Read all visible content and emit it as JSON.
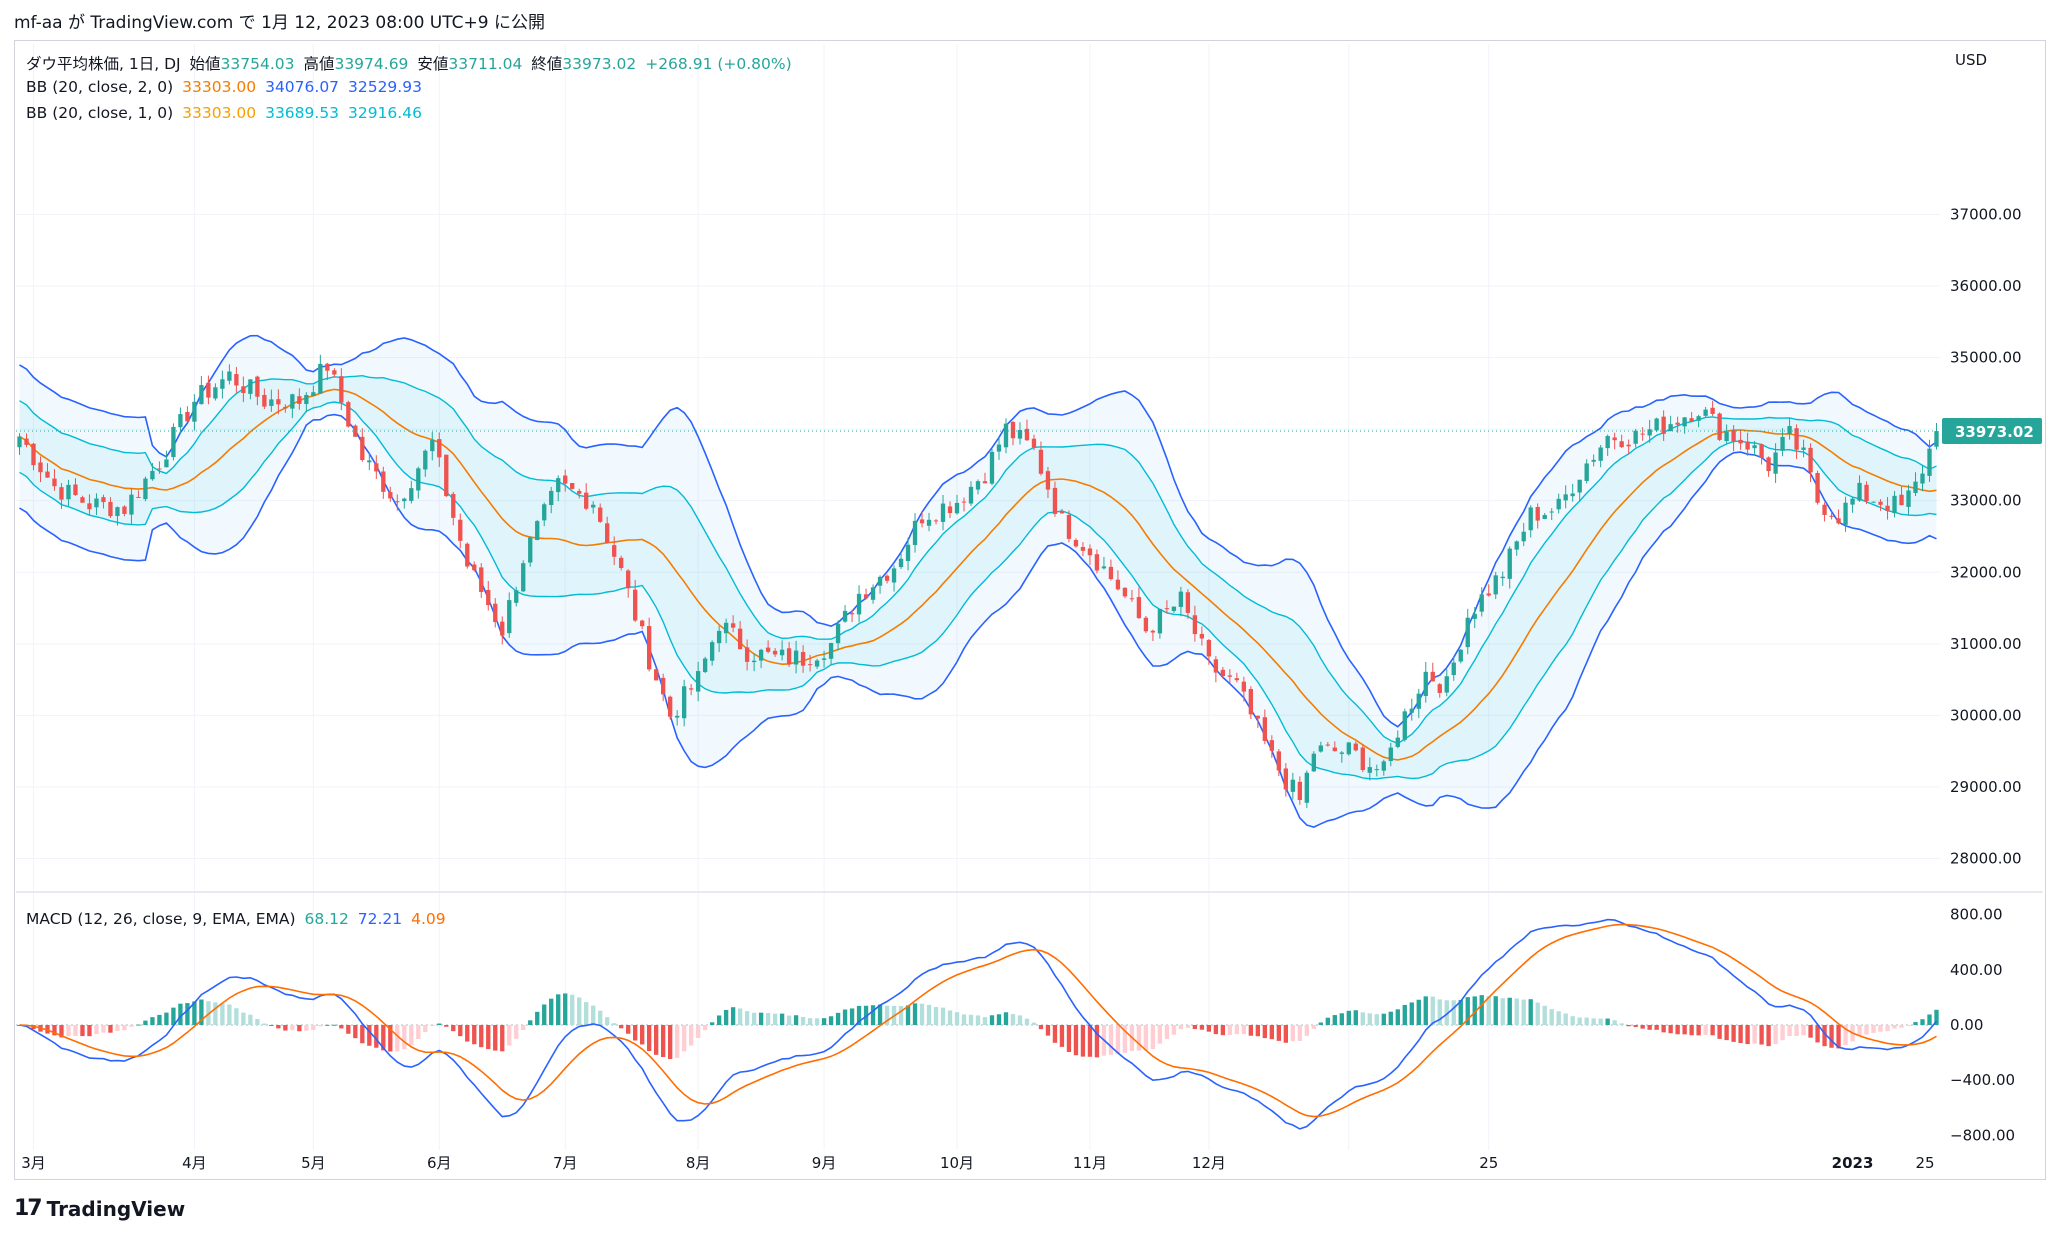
{
  "header": {
    "snapshot_line": "mf-aa が TradingView.com で 1月 12, 2023 08:00 UTC+9 に公開"
  },
  "footer": {
    "brand": "TradingView",
    "logo_icon": "tradingview-logo-icon"
  },
  "legend": {
    "ohlc": {
      "symbol": "ダウ平均株価, 1日, DJ",
      "open_label": "始値",
      "open": "33754.03",
      "high_label": "高値",
      "high": "33974.69",
      "low_label": "安値",
      "low": "33711.04",
      "close_label": "終値",
      "close": "33973.02",
      "change": "+268.91 (+0.80%)"
    },
    "bb2": {
      "label": "BB (20, close, 2, 0)",
      "basis": "33303.00",
      "upper": "34076.07",
      "lower": "32529.93"
    },
    "bb1": {
      "label": "BB (20, close, 1, 0)",
      "basis": "33303.00",
      "upper": "33689.53",
      "lower": "32916.46"
    },
    "macd": {
      "label": "MACD (12, 26, close, 9, EMA, EMA)",
      "hist": "68.12",
      "macd": "72.21",
      "signal": "4.09"
    }
  },
  "colors": {
    "up": "#26a69a",
    "down": "#ef5350",
    "up_light": "#b2dfdb",
    "down_light": "#ffcdd2",
    "basis": "#f57c00",
    "bb2_band": "#2962ff",
    "bb1_band": "#00bcd4",
    "macd_line": "#2962ff",
    "signal_line": "#ff6d00",
    "grid": "#f0f3fa",
    "text": "#131722",
    "bb2_fill": "rgba(33,150,243,0.06)",
    "bb1_fill": "rgba(0,188,212,0.07)"
  },
  "chart_data": [
    {
      "type": "candlestick",
      "title": "ダウ平均株価, 1日, DJ",
      "currency": "USD",
      "last_price": "33973.02",
      "ylim": [
        27700,
        37900
      ],
      "y_ticks": [
        "37000.00",
        "36000.00",
        "35000.00",
        "34000.00",
        "33000.00",
        "32000.00",
        "31000.00",
        "30000.00",
        "29000.00",
        "28000.00"
      ],
      "x_tick_labels": [
        "3月",
        "4月",
        "5月",
        "6月",
        "7月",
        "8月",
        "9月",
        "10月",
        "11月",
        "12月",
        "2023",
        "25"
      ],
      "close_anchors": [
        [
          0,
          33900
        ],
        [
          5,
          33200
        ],
        [
          10,
          32950
        ],
        [
          15,
          32900
        ],
        [
          20,
          33550
        ],
        [
          25,
          34400
        ],
        [
          30,
          34750
        ],
        [
          35,
          34400
        ],
        [
          40,
          34400
        ],
        [
          44,
          34900
        ],
        [
          49,
          33600
        ],
        [
          54,
          33000
        ],
        [
          59,
          33800
        ],
        [
          64,
          32100
        ],
        [
          69,
          31200
        ],
        [
          72,
          32200
        ],
        [
          77,
          33200
        ],
        [
          82,
          33000
        ],
        [
          86,
          32000
        ],
        [
          90,
          30800
        ],
        [
          93,
          30000
        ],
        [
          97,
          30500
        ],
        [
          100,
          31300
        ],
        [
          104,
          30900
        ],
        [
          108,
          30800
        ],
        [
          112,
          30800
        ],
        [
          116,
          31000
        ],
        [
          120,
          31700
        ],
        [
          125,
          32100
        ],
        [
          129,
          32800
        ],
        [
          134,
          33000
        ],
        [
          138,
          33400
        ],
        [
          141,
          34000
        ],
        [
          145,
          33700
        ],
        [
          149,
          32700
        ],
        [
          153,
          32300
        ],
        [
          157,
          31800
        ],
        [
          161,
          31200
        ],
        [
          166,
          31600
        ],
        [
          170,
          30700
        ],
        [
          174,
          30400
        ],
        [
          179,
          29400
        ],
        [
          183,
          28800
        ],
        [
          185,
          29500
        ],
        [
          190,
          29500
        ],
        [
          195,
          29200
        ],
        [
          197,
          29800
        ],
        [
          201,
          30600
        ],
        [
          204,
          30400
        ],
        [
          207,
          31400
        ],
        [
          212,
          32000
        ],
        [
          216,
          32800
        ],
        [
          220,
          32900
        ],
        [
          223,
          33400
        ],
        [
          227,
          33900
        ],
        [
          231,
          33900
        ],
        [
          236,
          34100
        ],
        [
          240,
          34300
        ],
        [
          243,
          34000
        ],
        [
          247,
          33800
        ],
        [
          250,
          33500
        ],
        [
          253,
          33900
        ],
        [
          255,
          33600
        ],
        [
          257,
          33000
        ],
        [
          260,
          32800
        ],
        [
          263,
          33100
        ],
        [
          266,
          33000
        ],
        [
          269,
          32900
        ],
        [
          271,
          33200
        ],
        [
          273,
          33700
        ],
        [
          274,
          33973.02
        ]
      ],
      "bb2": {
        "upper": "34076.07",
        "basis": "33303.00",
        "lower": "32529.93",
        "period": 20,
        "stddev": 2
      },
      "bb1": {
        "upper": "33689.53",
        "basis": "33303.00",
        "lower": "32916.46",
        "period": 20,
        "stddev": 1
      }
    },
    {
      "type": "macd",
      "title": "MACD (12, 26, close, 9, EMA, EMA)",
      "ylim": [
        -870,
        870
      ],
      "y_ticks": [
        "800.00",
        "400.00",
        "0.00",
        "−400.00",
        "−800.00"
      ],
      "last": {
        "histogram": "68.12",
        "macd": "72.21",
        "signal": "4.09"
      }
    }
  ]
}
